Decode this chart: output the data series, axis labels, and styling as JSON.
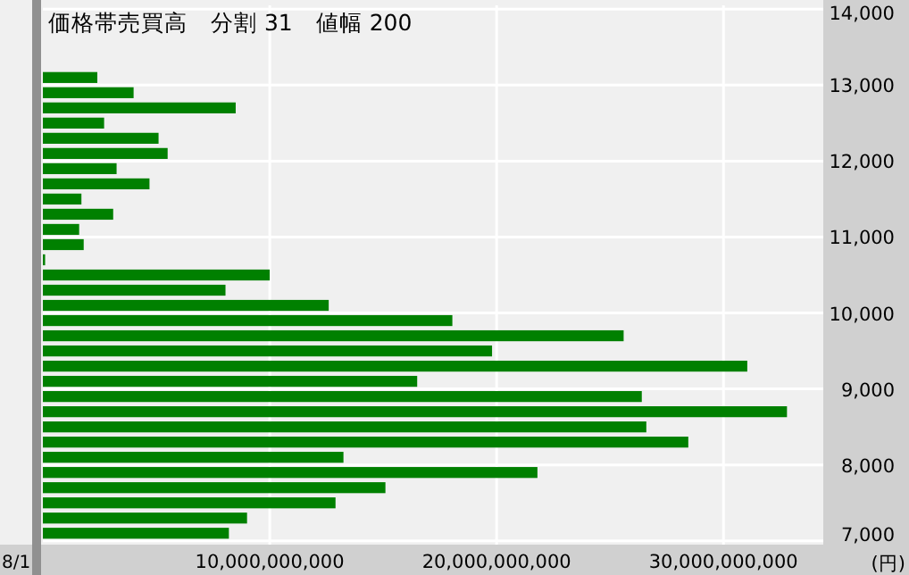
{
  "chart_data": {
    "type": "histogram",
    "orientation": "horizontal",
    "title": "価格帯売買高　分割 31　値幅 200",
    "ylabel": "(円)",
    "bins": [
      7000,
      7200,
      7400,
      7600,
      7800,
      8000,
      8200,
      8400,
      8600,
      8800,
      9000,
      9200,
      9400,
      9600,
      9800,
      10000,
      10200,
      10400,
      10600,
      10800,
      11000,
      11200,
      11400,
      11600,
      11800,
      12000,
      12200,
      12400,
      12600,
      12800,
      13000,
      13200
    ],
    "values": [
      8200000000,
      9000000000,
      12900000000,
      15100000000,
      21800000000,
      13250000000,
      28450000000,
      26600000000,
      32800000000,
      26400000000,
      16500000000,
      31050000000,
      19800000000,
      25600000000,
      18050000000,
      12600000000,
      8050000000,
      10000000000,
      100000000,
      1800000000,
      1600000000,
      3100000000,
      1700000000,
      4700000000,
      3250000000,
      5500000000,
      5100000000,
      2700000000,
      8500000000,
      4000000000,
      2400000000
    ],
    "color": "#008000",
    "grid": true,
    "xlim": [
      0,
      34400000000
    ],
    "xticks": [
      {
        "value": 10000000000,
        "label": "10,000,000,000"
      },
      {
        "value": 20000000000,
        "label": "20,000,000,000"
      },
      {
        "value": 30000000000,
        "label": "30,000,000,000"
      }
    ],
    "ylim": [
      6950,
      14050
    ],
    "yticks": [
      {
        "value": 7000,
        "label": "7,000"
      },
      {
        "value": 8000,
        "label": "8,000"
      },
      {
        "value": 9000,
        "label": "9,000"
      },
      {
        "value": 10000,
        "label": "10,000"
      },
      {
        "value": 11000,
        "label": "11,000"
      },
      {
        "value": 12000,
        "label": "12,000"
      },
      {
        "value": 13000,
        "label": "13,000"
      },
      {
        "value": 14000,
        "label": "14,000"
      }
    ],
    "annotations": [
      "8/1"
    ]
  }
}
